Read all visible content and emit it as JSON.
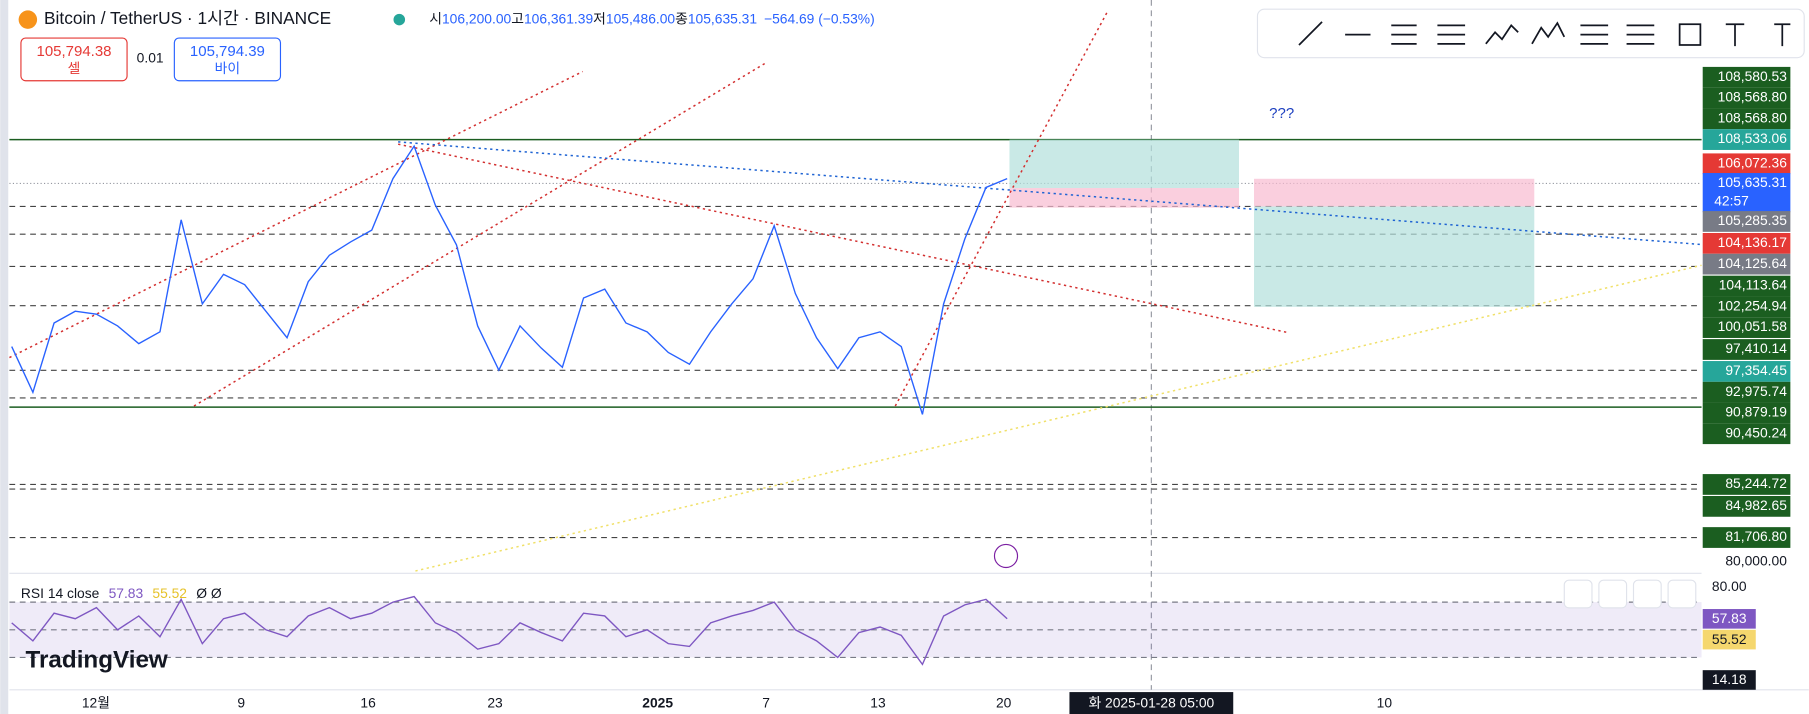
{
  "header": {
    "symbol": "Bitcoin / TetherUS · 1시간 · BINANCE",
    "open_label": "시",
    "open": "106,200.00",
    "high_label": "고",
    "high": "106,361.39",
    "low_label": "저",
    "low": "105,486.00",
    "close_label": "종",
    "close": "105,635.31",
    "change": "−564.69 (−0.53%)"
  },
  "order": {
    "sell_price": "105,794.38",
    "sell_label": "셀",
    "spread": "0.01",
    "buy_price": "105,794.39",
    "buy_label": "바이"
  },
  "annotation": "???",
  "price_axis": [
    {
      "text": "108,580.53",
      "color": "#1b5e20"
    },
    {
      "text": "108,568.80",
      "color": "#1b5e20"
    },
    {
      "text": "108,568.80",
      "color": "#1b5e20"
    },
    {
      "text": "108,533.06",
      "color": "#26a69a"
    },
    {
      "text": "106,072.36",
      "color": "#e53935"
    },
    {
      "text": "105,635.31",
      "color": "#2962ff",
      "sub": "42:57"
    },
    {
      "text": "105,285.35",
      "color": "#787b86"
    },
    {
      "text": "104,136.17",
      "color": "#e53935"
    },
    {
      "text": "104,125.64",
      "color": "#787b86"
    },
    {
      "text": "104,113.64",
      "color": "#1b5e20"
    },
    {
      "text": "102,254.94",
      "color": "#1b5e20"
    },
    {
      "text": "100,051.58",
      "color": "#1b5e20"
    },
    {
      "text": "97,410.14",
      "color": "#1b5e20"
    },
    {
      "text": "97,354.45",
      "color": "#26a69a"
    },
    {
      "text": "92,975.74",
      "color": "#1b5e20"
    },
    {
      "text": "90,879.19",
      "color": "#1b5e20"
    },
    {
      "text": "90,450.24",
      "color": "#1b5e20"
    },
    {
      "text": "85,244.72",
      "color": "#1b5e20"
    },
    {
      "text": "84,982.65",
      "color": "#1b5e20"
    },
    {
      "text": "81,706.80",
      "color": "#1b5e20"
    },
    {
      "text": "80,000.00",
      "color": null
    }
  ],
  "price_series": [
    94600,
    91500,
    96200,
    97000,
    96800,
    96000,
    94800,
    95600,
    103200,
    97500,
    99500,
    98800,
    97000,
    95200,
    99000,
    100800,
    101700,
    102500,
    106000,
    108200,
    104200,
    101500,
    96000,
    93000,
    96000,
    94500,
    93200,
    97900,
    98500,
    96200,
    95600,
    94200,
    93400,
    95600,
    97500,
    99200,
    102800,
    98200,
    95200,
    93100,
    95200,
    95600,
    94600,
    90000,
    97500,
    101900,
    105400,
    106000
  ],
  "rsi": {
    "label": "RSI 14 close",
    "value": "57.83",
    "ma": "55.52",
    "extra": "Ø Ø",
    "axis_top": "80.00",
    "axis_low": "14.18",
    "series": [
      55,
      42,
      62,
      58,
      66,
      50,
      60,
      45,
      72,
      40,
      58,
      62,
      50,
      45,
      60,
      66,
      58,
      62,
      70,
      74,
      55,
      48,
      36,
      40,
      55,
      48,
      42,
      62,
      60,
      45,
      50,
      40,
      38,
      55,
      60,
      64,
      70,
      50,
      42,
      30,
      48,
      52,
      46,
      25,
      60,
      68,
      72,
      58
    ]
  },
  "x_axis": [
    {
      "text": "12월"
    },
    {
      "text": "9"
    },
    {
      "text": "16"
    },
    {
      "text": "23"
    },
    {
      "text": "2025",
      "bold": true
    },
    {
      "text": "7"
    },
    {
      "text": "13"
    },
    {
      "text": "20"
    },
    {
      "text": "10"
    }
  ],
  "crosshair": "화 2025-01-28  05:00",
  "brand": "TradingView"
}
